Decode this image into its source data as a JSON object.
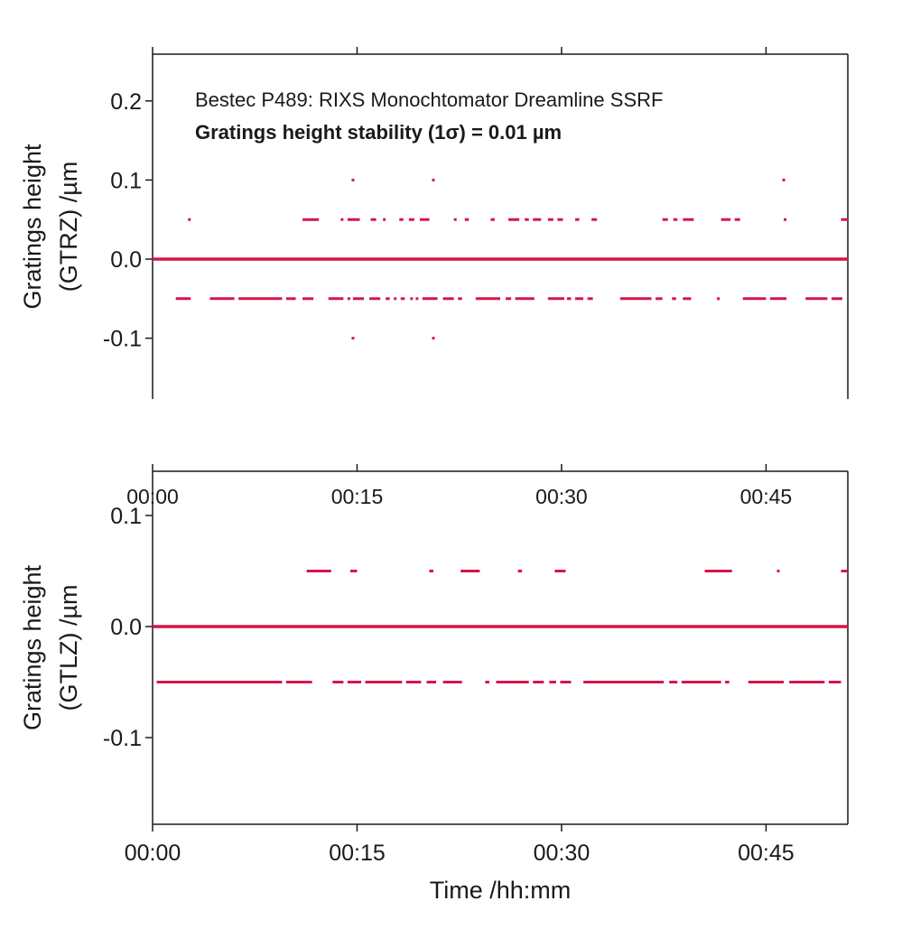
{
  "colors": {
    "series": "#d6154a",
    "axis": "#1a1a1a",
    "background": "#ffffff"
  },
  "chart_data": [
    {
      "type": "scatter",
      "panel": "top",
      "title": "",
      "annotations": [
        "Bestec P489: RIXS Monochtomator Dreamline SSRF",
        "Gratings height stability (1σ) = 0.01 µm"
      ],
      "ylabel_line1": "Gratings height",
      "ylabel_line2": "(GTRZ) /µm",
      "xlabel": "",
      "xlim_minutes": [
        0,
        51
      ],
      "ylim": [
        -0.175,
        0.26
      ],
      "y_ticks": [
        0.2,
        0.1,
        0.0,
        -0.1
      ],
      "y_tick_labels": [
        "0.2",
        "0.1",
        "0.0",
        "-0.1"
      ],
      "x_ticks": [
        0,
        15,
        30,
        45
      ],
      "show_x_tick_labels": false,
      "grid": false,
      "series": [
        {
          "values_by_level": [
            {
              "y": 0.0,
              "spans_minutes": [
                [
                  0,
                  51
                ]
              ]
            },
            {
              "y": 0.05,
              "spans_minutes": [
                [
                  2.6,
                  2.8
                ],
                [
                  11.0,
                  12.2
                ],
                [
                  13.8,
                  14.0
                ],
                [
                  14.3,
                  15.2
                ],
                [
                  16.0,
                  16.4
                ],
                [
                  16.9,
                  17.1
                ],
                [
                  18.1,
                  18.4
                ],
                [
                  18.8,
                  19.2
                ],
                [
                  19.6,
                  20.3
                ],
                [
                  22.1,
                  22.3
                ],
                [
                  22.9,
                  23.2
                ],
                [
                  24.8,
                  25.1
                ],
                [
                  26.1,
                  26.9
                ],
                [
                  27.3,
                  27.6
                ],
                [
                  27.9,
                  28.5
                ],
                [
                  29.0,
                  29.4
                ],
                [
                  29.7,
                  30.1
                ],
                [
                  31.0,
                  31.3
                ],
                [
                  32.2,
                  32.6
                ],
                [
                  37.4,
                  37.8
                ],
                [
                  38.2,
                  38.5
                ],
                [
                  38.9,
                  39.7
                ],
                [
                  41.7,
                  42.4
                ],
                [
                  42.7,
                  43.1
                ],
                [
                  46.3,
                  46.5
                ],
                [
                  50.5,
                  51
                ]
              ]
            },
            {
              "y": -0.05,
              "spans_minutes": [
                [
                  1.7,
                  2.8
                ],
                [
                  4.2,
                  6.0
                ],
                [
                  6.3,
                  9.5
                ],
                [
                  9.8,
                  10.5
                ],
                [
                  11.0,
                  11.8
                ],
                [
                  12.9,
                  14.0
                ],
                [
                  14.3,
                  14.5
                ],
                [
                  14.7,
                  15.5
                ],
                [
                  15.9,
                  16.7
                ],
                [
                  17.1,
                  17.4
                ],
                [
                  17.7,
                  17.9
                ],
                [
                  18.2,
                  18.5
                ],
                [
                  18.9,
                  19.0
                ],
                [
                  19.3,
                  19.5
                ],
                [
                  19.8,
                  20.9
                ],
                [
                  21.3,
                  22.1
                ],
                [
                  22.4,
                  22.7
                ],
                [
                  23.7,
                  25.5
                ],
                [
                  25.9,
                  26.3
                ],
                [
                  26.6,
                  28.0
                ],
                [
                  29.0,
                  30.2
                ],
                [
                  30.4,
                  30.7
                ],
                [
                  31.0,
                  31.6
                ],
                [
                  31.9,
                  32.3
                ],
                [
                  34.3,
                  36.6
                ],
                [
                  36.9,
                  37.4
                ],
                [
                  38.1,
                  38.4
                ],
                [
                  38.9,
                  39.5
                ],
                [
                  41.4,
                  41.6
                ],
                [
                  43.3,
                  45.0
                ],
                [
                  45.3,
                  46.5
                ],
                [
                  47.9,
                  49.5
                ],
                [
                  49.8,
                  50.6
                ]
              ]
            },
            {
              "y": 0.1,
              "spans_minutes": [
                [
                  14.6,
                  14.7
                ],
                [
                  20.5,
                  20.6
                ],
                [
                  46.2,
                  46.3
                ]
              ]
            },
            {
              "y": -0.1,
              "spans_minutes": [
                [
                  14.6,
                  14.7
                ],
                [
                  20.5,
                  20.6
                ]
              ]
            }
          ]
        }
      ]
    },
    {
      "type": "scatter",
      "panel": "bottom",
      "title": "",
      "ylabel_line1": "Gratings height",
      "ylabel_line2": "(GTLZ) /µm",
      "xlabel": "Time /hh:mm",
      "xlim_minutes": [
        0,
        51
      ],
      "ylim": [
        -0.178,
        0.125
      ],
      "y_ticks": [
        0.1,
        0.0,
        -0.1
      ],
      "y_tick_labels": [
        "0.1",
        "0.0",
        "-0.1"
      ],
      "x_ticks": [
        0,
        15,
        30,
        45
      ],
      "x_tick_labels": [
        "00:00",
        "00:15",
        "00:30",
        "00:45"
      ],
      "top_axis_tick_labels": [
        "00:00",
        "00:15",
        "00:30",
        "00:45"
      ],
      "grid": false,
      "series": [
        {
          "values_by_level": [
            {
              "y": 0.0,
              "spans_minutes": [
                [
                  0,
                  51
                ]
              ]
            },
            {
              "y": 0.05,
              "spans_minutes": [
                [
                  11.3,
                  13.1
                ],
                [
                  14.5,
                  15.0
                ],
                [
                  20.3,
                  20.6
                ],
                [
                  22.6,
                  24.0
                ],
                [
                  26.8,
                  27.1
                ],
                [
                  29.5,
                  30.3
                ],
                [
                  40.5,
                  42.5
                ],
                [
                  45.8,
                  46.0
                ],
                [
                  50.5,
                  51
                ]
              ]
            },
            {
              "y": -0.05,
              "spans_minutes": [
                [
                  0.3,
                  9.5
                ],
                [
                  9.8,
                  11.7
                ],
                [
                  13.2,
                  14.0
                ],
                [
                  14.3,
                  15.3
                ],
                [
                  15.6,
                  18.3
                ],
                [
                  18.6,
                  19.7
                ],
                [
                  20.1,
                  20.8
                ],
                [
                  21.3,
                  22.7
                ],
                [
                  24.4,
                  24.7
                ],
                [
                  25.2,
                  27.6
                ],
                [
                  27.9,
                  28.7
                ],
                [
                  29.1,
                  29.6
                ],
                [
                  29.9,
                  30.7
                ],
                [
                  31.6,
                  37.5
                ],
                [
                  37.9,
                  38.5
                ],
                [
                  38.8,
                  41.7
                ],
                [
                  42.0,
                  42.3
                ],
                [
                  43.7,
                  46.3
                ],
                [
                  46.7,
                  49.3
                ],
                [
                  49.6,
                  50.5
                ]
              ]
            }
          ]
        }
      ]
    }
  ]
}
